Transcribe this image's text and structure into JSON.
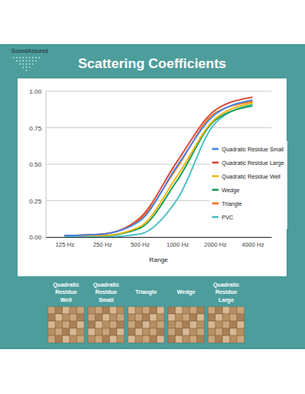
{
  "header": {
    "logo": "SoundAssured"
  },
  "chart_data": {
    "type": "line",
    "title": "Scattering Coefficients",
    "x_label": "Range",
    "categories": [
      "125 Hz",
      "250 Hz",
      "500 Hz",
      "1000 Hz",
      "2000 Hz",
      "4000 Hz"
    ],
    "series": [
      {
        "name": "Quadratic Residue Small",
        "color": "#4285f4",
        "values": [
          0.01,
          0.02,
          0.11,
          0.49,
          0.84,
          0.94
        ]
      },
      {
        "name": "Quadratic Residue Large",
        "color": "#db4437",
        "values": [
          0.01,
          0.02,
          0.13,
          0.52,
          0.87,
          0.96
        ]
      },
      {
        "name": "Quadratic Residue Well",
        "color": "#f4b400",
        "values": [
          0.01,
          0.01,
          0.07,
          0.42,
          0.81,
          0.92
        ]
      },
      {
        "name": "Wedge",
        "color": "#0f9d58",
        "values": [
          0.01,
          0.01,
          0.06,
          0.39,
          0.8,
          0.9
        ]
      },
      {
        "name": "Triangle",
        "color": "#ff6d00",
        "values": [
          0.01,
          0.02,
          0.12,
          0.48,
          0.85,
          0.93
        ]
      },
      {
        "name": "PVC",
        "color": "#46bdc6",
        "values": [
          0,
          0,
          0.02,
          0.26,
          0.78,
          0.91
        ]
      }
    ],
    "ylim": [
      0,
      1
    ],
    "yticks": [
      {
        "value": 0,
        "label": "0.00"
      },
      {
        "value": 0.25,
        "label": "0.25"
      },
      {
        "value": 0.5,
        "label": "0.50"
      },
      {
        "value": 0.75,
        "label": "0.75"
      },
      {
        "value": 1,
        "label": "1.00"
      }
    ],
    "grid": true,
    "legend": "right"
  },
  "panels": [
    "Quadratic Residue Well",
    "Quadratic Residue Small",
    "Triangle",
    "Wedge",
    "Quadratic Residue Large"
  ]
}
